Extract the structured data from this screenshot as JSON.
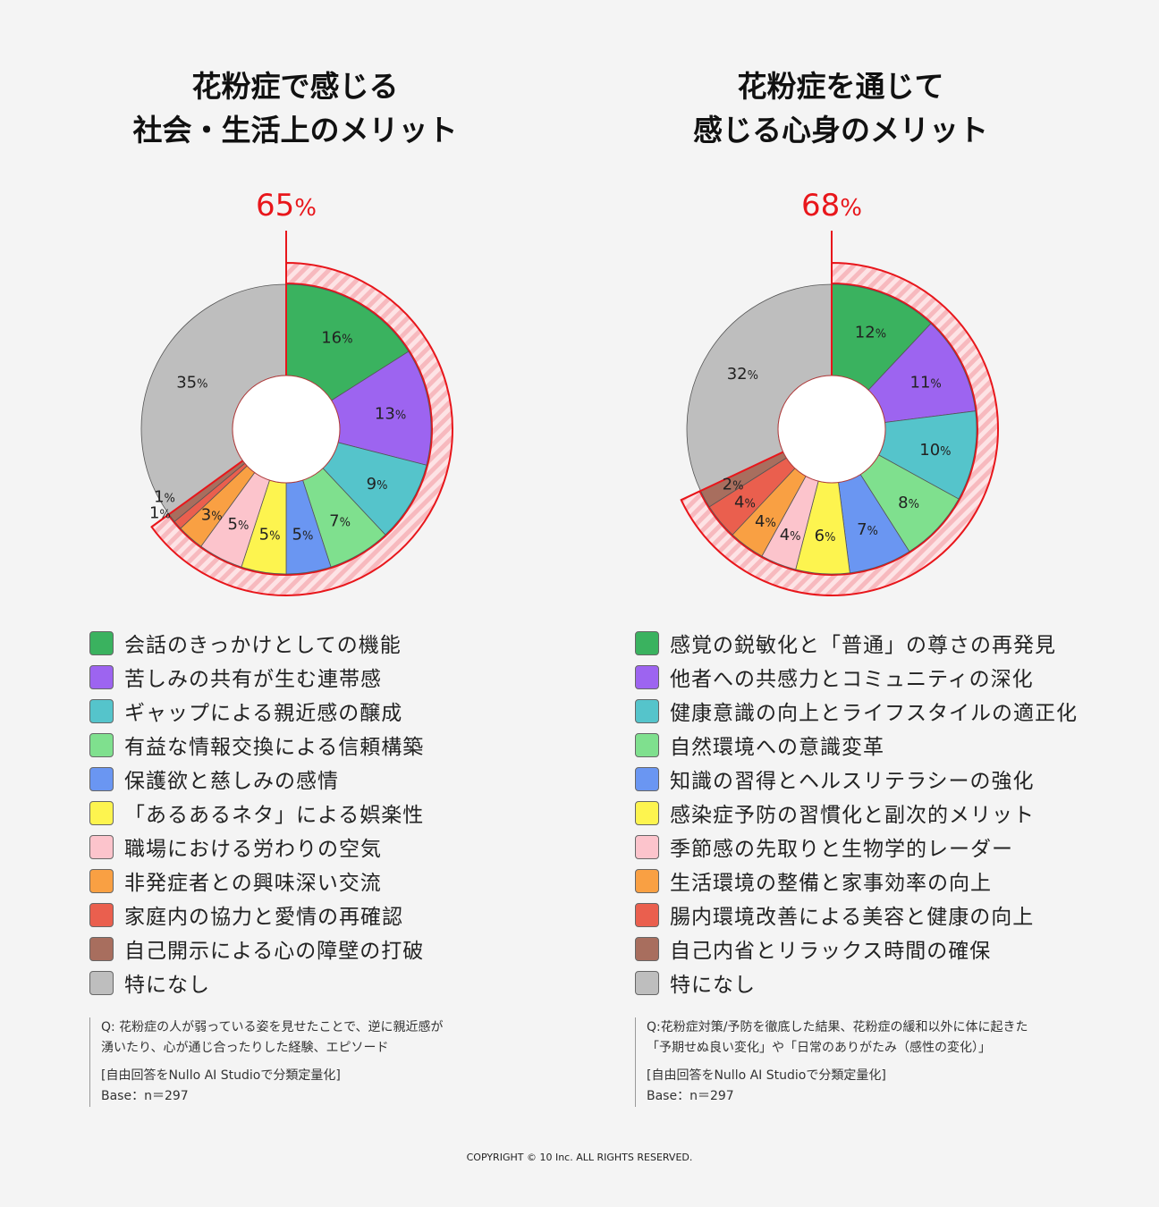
{
  "charts": [
    {
      "title_lines": [
        "花粉症で感じる",
        "社会・生活上のメリット"
      ],
      "highlight": {
        "value": "65",
        "unit": "%"
      },
      "note": {
        "question_lines": [
          "Q: 花粉症の人が弱っている姿を見せたことで、逆に親近感が",
          "湧いたり、心が通じ合ったりした経験、エピソード"
        ],
        "method": "[自由回答をNullo AI Studioで分類定量化]",
        "base": "Base：n＝297"
      }
    },
    {
      "title_lines": [
        "花粉症を通じて",
        "感じる心身のメリット"
      ],
      "highlight": {
        "value": "68",
        "unit": "%"
      },
      "note": {
        "question_lines": [
          "Q:花粉症対策/予防を徹底した結果、花粉症の緩和以外に体に起きた",
          "「予期せぬ良い変化」や「日常のありがたみ（感性の変化）」"
        ],
        "method": "[自由回答をNullo AI Studioで分類定量化]",
        "base": "Base：n＝297"
      }
    }
  ],
  "chart_data": [
    {
      "type": "pie",
      "unit": "%",
      "categories": [
        "会話のきっかけとしての機能",
        "苦しみの共有が生む連帯感",
        "ギャップによる親近感の醸成",
        "有益な情報交換による信頼構築",
        "保護欲と慈しみの感情",
        "「あるあるネタ」による娯楽性",
        "職場における労わりの空気",
        "非発症者との興味深い交流",
        "家庭内の協力と愛情の再確認",
        "自己開示による心の障壁の打破",
        "特になし"
      ],
      "values": [
        16,
        13,
        9,
        7,
        5,
        5,
        5,
        3,
        1,
        1,
        35
      ],
      "colors": [
        "#3ab25f",
        "#9d64f0",
        "#55c4cb",
        "#7fe08e",
        "#6a96f2",
        "#fdf44f",
        "#fcc4cc",
        "#f9a043",
        "#ea5f4e",
        "#a86e5e",
        "#bebebe"
      ],
      "highlight_total": 65
    },
    {
      "type": "pie",
      "unit": "%",
      "categories": [
        "感覚の鋭敏化と「普通」の尊さの再発見",
        "他者への共感力とコミュニティの深化",
        "健康意識の向上とライフスタイルの適正化",
        "自然環境への意識変革",
        "知識の習得とヘルスリテラシーの強化",
        "感染症予防の習慣化と副次的メリット",
        "季節感の先取りと生物学的レーダー",
        "生活環境の整備と家事効率の向上",
        "腸内環境改善による美容と健康の向上",
        "自己内省とリラックス時間の確保",
        "特になし"
      ],
      "values": [
        12,
        11,
        10,
        8,
        7,
        6,
        4,
        4,
        4,
        2,
        32
      ],
      "colors": [
        "#3ab25f",
        "#9d64f0",
        "#55c4cb",
        "#7fe08e",
        "#6a96f2",
        "#fdf44f",
        "#fcc4cc",
        "#f9a043",
        "#ea5f4e",
        "#a86e5e",
        "#bebebe"
      ],
      "highlight_total": 68
    }
  ],
  "copyright": "COPYRIGHT © 10 Inc. ALL RIGHTS RESERVED."
}
